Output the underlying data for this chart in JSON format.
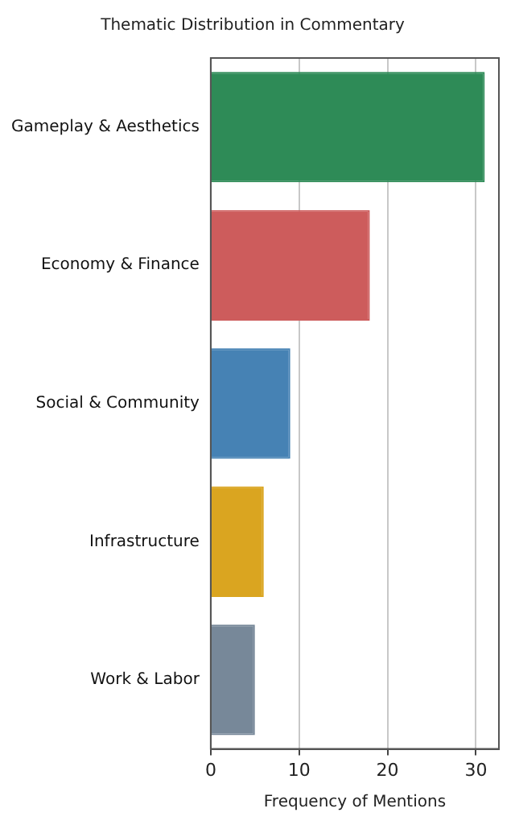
{
  "chart_data": {
    "type": "bar",
    "orientation": "horizontal",
    "title": "Thematic Distribution in Commentary",
    "xlabel": "Frequency of Mentions",
    "categories": [
      "Gameplay & Aesthetics",
      "Economy & Finance",
      "Social & Community",
      "Infrastructure",
      "Work & Labor"
    ],
    "values": [
      31,
      18,
      9,
      6,
      5
    ],
    "colors": [
      "#2e8b57",
      "#cd5c5c",
      "#4682b4",
      "#daa520",
      "#778899"
    ],
    "xlim": [
      0,
      32.6
    ],
    "xticks": [
      0,
      10,
      20,
      30
    ],
    "grid": "x"
  }
}
